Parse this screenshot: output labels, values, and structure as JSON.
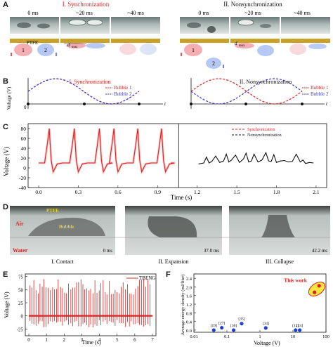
{
  "panels": {
    "A": {
      "label": "A",
      "title_sync": "I. Synchronization",
      "title_nonsync": "II. Nonsynchronization",
      "times_sync": [
        "0 ms",
        "~20 ms",
        "~40 ms"
      ],
      "times_nonsync": [
        "0 ms",
        "~20 ms",
        "~40 ms"
      ],
      "ptfe_label": "PTFE",
      "dmax_label": "d",
      "dmax_sub": "max",
      "bubble_1": "1",
      "bubble_2": "2"
    },
    "B": {
      "label": "B",
      "ylabel": "Voltage (V)",
      "xlabel": "t",
      "title_sync": "I. Synchronization",
      "title_nonsync": "II. Nonsynchronization",
      "legend_sync": [
        "Bubble 1",
        "Bubble 2"
      ],
      "legend_nonsync": [
        "Bubble 1",
        "Bubble 2"
      ],
      "origin": "0"
    },
    "C": {
      "label": "C",
      "legend": [
        "Synchronization",
        "Nonsynchronization"
      ]
    },
    "D": {
      "label": "D",
      "ptfe": "PTFE",
      "air": "Air",
      "bubble": "Bubble",
      "water": "Water",
      "captions": [
        "I. Contact",
        "II. Expansion",
        "III. Collapse"
      ],
      "times": [
        "0 ms",
        "37.0 ms",
        "42.2 ms"
      ]
    },
    "E": {
      "label": "E",
      "legend": "TBENG"
    },
    "F": {
      "label": "F",
      "this_work": "This work",
      "point_labels": [
        "[19]",
        "[27]",
        "[36]",
        "[35]",
        "[34]",
        "[12]",
        "[24]"
      ]
    }
  },
  "chart_data": [
    {
      "panel": "C",
      "type": "line",
      "xlabel": "Time (s)",
      "ylabel": "Voltage (V)",
      "xticks": [
        0.0,
        0.3,
        0.6,
        0.9,
        1.2,
        1.5,
        1.8,
        2.1
      ],
      "yticks": [
        -40,
        -20,
        0,
        20,
        40,
        60,
        80
      ],
      "xlim": [
        -0.08,
        2.18
      ],
      "ylim": [
        -40,
        90
      ],
      "series": [
        {
          "name": "Synchronization",
          "color": "#e02020",
          "spike_times": [
            0.08,
            0.27,
            0.46,
            0.57,
            0.75,
            0.93
          ],
          "spike_peak": 80,
          "spike_trough": -8,
          "baseline": 10
        },
        {
          "name": "Nonsynchronization",
          "color": "#111111",
          "x": [
            1.21,
            1.25,
            1.27,
            1.29,
            1.31,
            1.34,
            1.37,
            1.4,
            1.42,
            1.44,
            1.46,
            1.49,
            1.52,
            1.55,
            1.57,
            1.59,
            1.61,
            1.63,
            1.66,
            1.69,
            1.72,
            1.74,
            1.76,
            1.78,
            1.8,
            1.83,
            1.86,
            1.89,
            1.92,
            1.95,
            1.98,
            2.0,
            2.02,
            2.05,
            2.08
          ],
          "y": [
            8,
            10,
            22,
            10,
            13,
            24,
            11,
            14,
            28,
            12,
            16,
            26,
            11,
            18,
            30,
            12,
            14,
            28,
            12,
            16,
            31,
            14,
            13,
            27,
            11,
            14,
            15,
            12,
            13,
            28,
            12,
            16,
            9,
            11,
            10
          ]
        }
      ]
    },
    {
      "panel": "E",
      "type": "line",
      "xlabel": "Time (s)",
      "ylabel": "Voltage (V)",
      "xticks": [
        0,
        1,
        2,
        3,
        4,
        5,
        6,
        7
      ],
      "yticks": [
        -25,
        0,
        25,
        50,
        75
      ],
      "xlim": [
        -0.2,
        7.2
      ],
      "ylim": [
        -38,
        80
      ],
      "series": [
        {
          "name": "TBENG",
          "color": "#e02020",
          "spike_count": 60,
          "peak_min": 40,
          "peak_max": 72,
          "trough_min": -8,
          "trough_max": -22
        }
      ]
    },
    {
      "panel": "F",
      "type": "scatter",
      "xlabel": "Voltage (V)",
      "ylabel": "Average energy density (mJ/liter)",
      "xscale": "log",
      "xticks": [
        0.01,
        0.1,
        1,
        10,
        100
      ],
      "xticklabels": [
        "0.01",
        "0.1",
        "1",
        "10",
        "100"
      ],
      "yticks": [
        0.0,
        0.4,
        0.8,
        1.2,
        1.6,
        2.0,
        2.4
      ],
      "xlim": [
        0.01,
        100
      ],
      "ylim": [
        -0.1,
        2.6
      ],
      "series": [
        {
          "name": "references",
          "color": "#1f3fd8",
          "x": [
            0.04,
            0.07,
            0.16,
            0.28,
            1.5,
            12,
            16
          ],
          "y": [
            0.0,
            0.11,
            0.0,
            0.3,
            0.1,
            0.0,
            0.0
          ]
        },
        {
          "name": "This work",
          "color": "#e02020",
          "x": [
            45,
            62
          ],
          "y": [
            1.75,
            2.05
          ]
        }
      ]
    }
  ]
}
